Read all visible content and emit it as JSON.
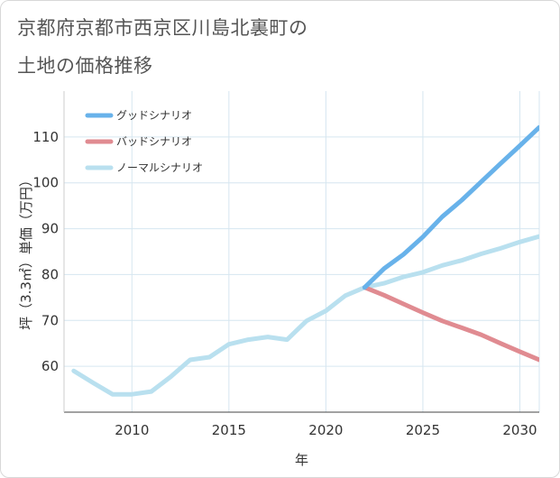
{
  "title_line1": "京都府京都市西京区川島北裏町の",
  "title_line2": "土地の価格推移",
  "chart_data": {
    "type": "line",
    "xlabel": "年",
    "ylabel": "坪（3.3㎡）単価（万円）",
    "xlim": [
      2006.5,
      2031
    ],
    "ylim": [
      50,
      120
    ],
    "x_ticks": [
      2010,
      2015,
      2020,
      2025,
      2030
    ],
    "y_ticks": [
      60,
      70,
      80,
      90,
      100,
      110
    ],
    "grid": true,
    "legend_position": "top-left",
    "series": [
      {
        "name": "グッドシナリオ",
        "color": "#68b2ea",
        "x": [
          2022,
          2023,
          2024,
          2025,
          2026,
          2027,
          2028,
          2029,
          2030,
          2031
        ],
        "y": [
          77.2,
          81.3,
          84.4,
          88.2,
          92.6,
          96.2,
          100.2,
          104.2,
          108.1,
          112.1
        ]
      },
      {
        "name": "バッドシナリオ",
        "color": "#e08b91",
        "x": [
          2022,
          2023,
          2024,
          2025,
          2026,
          2027,
          2028,
          2029,
          2030,
          2031
        ],
        "y": [
          77.2,
          75.5,
          73.6,
          71.7,
          69.9,
          68.4,
          66.9,
          65.0,
          63.2,
          61.4
        ]
      },
      {
        "name": "ノーマルシナリオ",
        "color": "#b9e0ef",
        "x": [
          2007,
          2008,
          2009,
          2010,
          2011,
          2012,
          2013,
          2014,
          2015,
          2016,
          2017,
          2018,
          2019,
          2020,
          2021,
          2022,
          2023,
          2024,
          2025,
          2026,
          2027,
          2028,
          2029,
          2030,
          2031
        ],
        "y": [
          59.0,
          56.4,
          53.9,
          53.9,
          54.5,
          57.7,
          61.4,
          62.0,
          64.8,
          65.8,
          66.4,
          65.8,
          69.9,
          72.1,
          75.4,
          77.2,
          78.1,
          79.5,
          80.5,
          82.0,
          83.1,
          84.5,
          85.7,
          87.1,
          88.3
        ]
      }
    ]
  }
}
